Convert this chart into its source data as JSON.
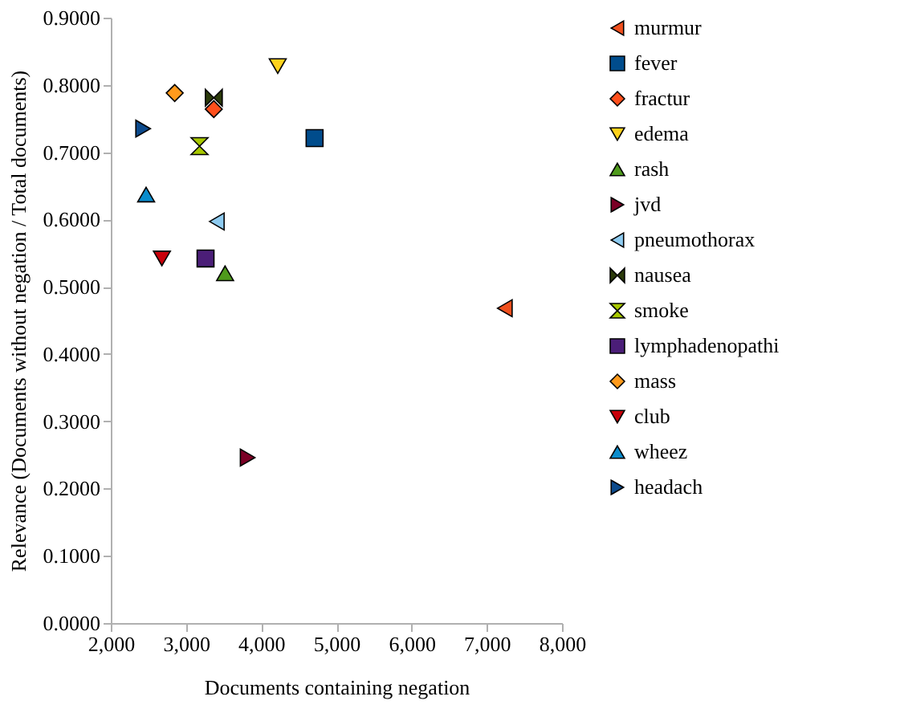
{
  "chart_data": {
    "type": "scatter",
    "xlabel": "Documents containing negation",
    "ylabel": "Relevance (Documents without negation / Total documents)",
    "xlim": [
      2000,
      8000
    ],
    "xticks": [
      {
        "value": 2000,
        "label": "2,000"
      },
      {
        "value": 3000,
        "label": "3,000"
      },
      {
        "value": 4000,
        "label": "4,000"
      },
      {
        "value": 5000,
        "label": "5,000"
      },
      {
        "value": 6000,
        "label": "6,000"
      },
      {
        "value": 7000,
        "label": "7,000"
      },
      {
        "value": 8000,
        "label": "8,000"
      }
    ],
    "ylim": [
      0,
      0.9
    ],
    "yticks": [
      {
        "value": 0,
        "label": "0.0000"
      },
      {
        "value": 0.1,
        "label": "0.1000"
      },
      {
        "value": 0.2,
        "label": "0.2000"
      },
      {
        "value": 0.3,
        "label": "0.3000"
      },
      {
        "value": 0.4,
        "label": "0.4000"
      },
      {
        "value": 0.5,
        "label": "0.5000"
      },
      {
        "value": 0.6,
        "label": "0.6000"
      },
      {
        "value": 0.7,
        "label": "0.7000"
      },
      {
        "value": 0.8,
        "label": "0.8000"
      },
      {
        "value": 0.9,
        "label": "0.9000"
      }
    ],
    "grid": false,
    "legend": "right",
    "series": [
      {
        "name": "murmur",
        "color": "#f0501e",
        "marker": "triangle-left",
        "x": [
          7240
        ],
        "values": [
          0.468
        ]
      },
      {
        "name": "fever",
        "color": "#004c8c",
        "marker": "square",
        "x": [
          4710
        ],
        "values": [
          0.721
        ]
      },
      {
        "name": "fractur",
        "color": "#ff4f1c",
        "marker": "diamond",
        "x": [
          3370
        ],
        "values": [
          0.764
        ]
      },
      {
        "name": "edema",
        "color": "#ffd21c",
        "marker": "triangle-down",
        "x": [
          4220
        ],
        "values": [
          0.828
        ]
      },
      {
        "name": "rash",
        "color": "#4f9a1c",
        "marker": "triangle-up",
        "x": [
          3520
        ],
        "values": [
          0.52
        ]
      },
      {
        "name": "jvd",
        "color": "#7b0026",
        "marker": "triangle-right",
        "x": [
          3820
        ],
        "values": [
          0.246
        ]
      },
      {
        "name": "pneumothorax",
        "color": "#8ecbf0",
        "marker": "triangle-left",
        "x": [
          3410
        ],
        "values": [
          0.597
        ]
      },
      {
        "name": "nausea",
        "color": "#2b3a0a",
        "x": [
          3370
        ],
        "values": [
          0.781
        ]
      },
      {
        "name": "smoke",
        "color": "#a8c800",
        "x": [
          3180
        ],
        "values": [
          0.709
        ]
      },
      {
        "name": "lymphadenopathi",
        "color": "#4b1e78",
        "marker": "square",
        "x": [
          3260
        ],
        "values": [
          0.542
        ]
      },
      {
        "name": "mass",
        "color": "#ff9a1c",
        "marker": "diamond",
        "x": [
          2850
        ],
        "values": [
          0.788
        ]
      },
      {
        "name": "club",
        "color": "#c8000a",
        "marker": "triangle-down",
        "x": [
          2680
        ],
        "values": [
          0.542
        ]
      },
      {
        "name": "wheez",
        "color": "#0a8ccc",
        "marker": "triangle-up",
        "x": [
          2470
        ],
        "values": [
          0.637
        ]
      },
      {
        "name": "headach",
        "color": "#0c4a8c",
        "marker": "triangle-right",
        "x": [
          2430
        ],
        "values": [
          0.735
        ]
      }
    ]
  }
}
